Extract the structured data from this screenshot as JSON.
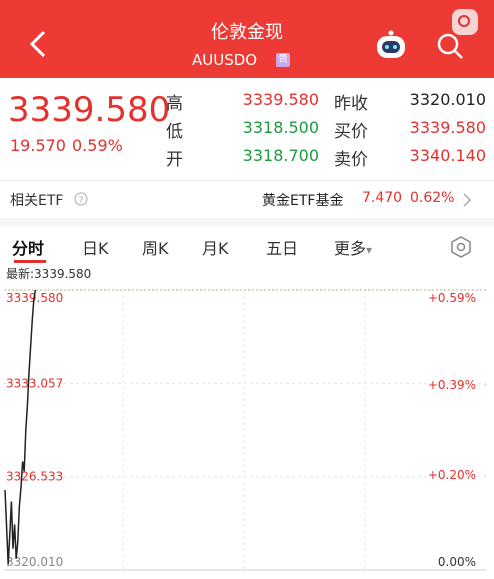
{
  "header": {
    "title": "伦敦金现",
    "subtitle": "AUUSDO",
    "badge": "贵"
  },
  "quote": {
    "price": "3339.580",
    "change": "19.570",
    "change_pct": "0.59%",
    "stats": [
      [
        {
          "label": "高",
          "value": "3339.580"
        },
        {
          "label": "昨收",
          "value": "3320.010"
        }
      ],
      [
        {
          "label": "低",
          "value": "3318.500"
        },
        {
          "label": "买价",
          "value": "3339.580"
        }
      ],
      [
        {
          "label": "开",
          "value": "3318.700"
        },
        {
          "label": "卖价",
          "value": "3340.140"
        }
      ]
    ]
  },
  "etf": {
    "label": "相关ETF",
    "name": "黄金ETF基金",
    "price": "7.470",
    "change_pct": "0.62%"
  },
  "tabs": [
    "分时",
    "日K",
    "周K",
    "月K",
    "五日",
    "更多"
  ],
  "chart_data": {
    "type": "line",
    "annotation": "最新:3339.580",
    "series": [
      {
        "color": "#222222",
        "values": [
          3325.6,
          3323.0,
          3320.4,
          3322.5,
          3324.8,
          3321.5,
          3323.2,
          3320.8,
          3322.0,
          3324.5,
          3325.8,
          3327.6,
          3326.9,
          3329.8,
          3331.5,
          3333.8,
          3335.6,
          3337.4,
          3338.9,
          3339.58
        ]
      }
    ],
    "ylim": [
      3320.01,
      3339.58
    ],
    "yticks": [
      {
        "value": 3320.01,
        "label": "3320.010"
      },
      {
        "value": 3326.533,
        "label": "3326.533"
      },
      {
        "value": 3333.057,
        "label": "3333.057"
      },
      {
        "value": 3339.58,
        "label": "3339.580"
      }
    ],
    "y2lim": [
      0,
      0.59
    ],
    "y2ticks": [
      {
        "value": 0,
        "label": "0.00%"
      },
      {
        "value": 0.2,
        "label": "+0.20%"
      },
      {
        "value": 0.39,
        "label": "+0.39%"
      },
      {
        "value": 0.59,
        "label": "+0.59%"
      }
    ]
  }
}
